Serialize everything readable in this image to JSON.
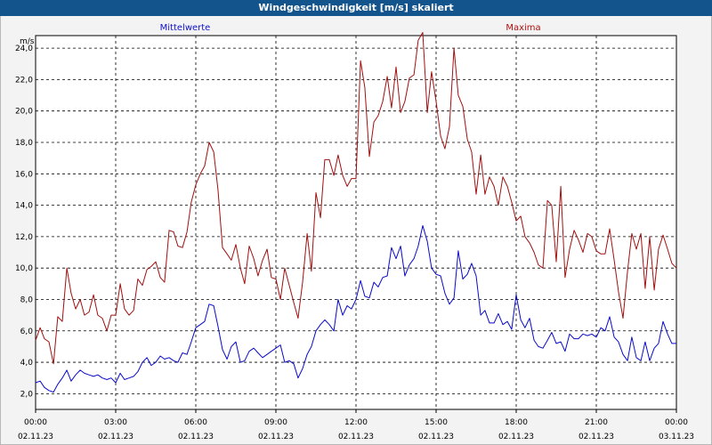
{
  "window": {
    "title": "Windgeschwindigkeit [m/s] skaliert"
  },
  "chart_data": {
    "type": "line",
    "title": "Windgeschwindigkeit [m/s] skaliert",
    "ylabel": "m/s",
    "xlabel": "",
    "ylim": [
      1,
      24.8
    ],
    "xlim": [
      0,
      24
    ],
    "grid": true,
    "legend_position": "top",
    "y_ticks": [
      "2,0",
      "4,0",
      "6,0",
      "8,0",
      "10,0",
      "12,0",
      "14,0",
      "16,0",
      "18,0",
      "20,0",
      "22,0",
      "24,0"
    ],
    "x_ticks": [
      {
        "time": "00:00",
        "date": "02.11.23"
      },
      {
        "time": "03:00",
        "date": "02.11.23"
      },
      {
        "time": "06:00",
        "date": "02.11.23"
      },
      {
        "time": "09:00",
        "date": "02.11.23"
      },
      {
        "time": "12:00",
        "date": "02.11.23"
      },
      {
        "time": "15:00",
        "date": "02.11.23"
      },
      {
        "time": "18:00",
        "date": "02.11.23"
      },
      {
        "time": "21:00",
        "date": "02.11.23"
      },
      {
        "time": "00:00",
        "date": "03.11.23"
      }
    ],
    "series": [
      {
        "name": "Mittelwerte",
        "color": "#0a0ac8",
        "points": [
          [
            0.0,
            2.7
          ],
          [
            0.17,
            2.8
          ],
          [
            0.33,
            2.4
          ],
          [
            0.5,
            2.2
          ],
          [
            0.67,
            2.1
          ],
          [
            0.83,
            2.6
          ],
          [
            1.0,
            3.0
          ],
          [
            1.17,
            3.5
          ],
          [
            1.33,
            2.8
          ],
          [
            1.5,
            3.2
          ],
          [
            1.67,
            3.5
          ],
          [
            1.83,
            3.3
          ],
          [
            2.0,
            3.2
          ],
          [
            2.17,
            3.1
          ],
          [
            2.33,
            3.2
          ],
          [
            2.5,
            3.0
          ],
          [
            2.67,
            2.9
          ],
          [
            2.83,
            3.0
          ],
          [
            3.0,
            2.7
          ],
          [
            3.17,
            3.3
          ],
          [
            3.33,
            2.9
          ],
          [
            3.5,
            3.0
          ],
          [
            3.67,
            3.1
          ],
          [
            3.83,
            3.4
          ],
          [
            4.0,
            4.0
          ],
          [
            4.17,
            4.3
          ],
          [
            4.33,
            3.8
          ],
          [
            4.5,
            4.0
          ],
          [
            4.67,
            4.4
          ],
          [
            4.83,
            4.2
          ],
          [
            5.0,
            4.3
          ],
          [
            5.17,
            4.1
          ],
          [
            5.33,
            4.0
          ],
          [
            5.5,
            4.6
          ],
          [
            5.67,
            4.5
          ],
          [
            5.83,
            5.3
          ],
          [
            6.0,
            6.2
          ],
          [
            6.17,
            6.4
          ],
          [
            6.33,
            6.6
          ],
          [
            6.5,
            7.7
          ],
          [
            6.67,
            7.6
          ],
          [
            6.83,
            6.3
          ],
          [
            7.0,
            4.8
          ],
          [
            7.17,
            4.2
          ],
          [
            7.33,
            5.0
          ],
          [
            7.5,
            5.3
          ],
          [
            7.67,
            4.0
          ],
          [
            7.83,
            4.1
          ],
          [
            8.0,
            4.7
          ],
          [
            8.17,
            4.9
          ],
          [
            8.33,
            4.6
          ],
          [
            8.5,
            4.3
          ],
          [
            8.67,
            4.5
          ],
          [
            8.83,
            4.7
          ],
          [
            9.0,
            4.9
          ],
          [
            9.17,
            5.1
          ],
          [
            9.33,
            4.0
          ],
          [
            9.5,
            4.1
          ],
          [
            9.67,
            3.9
          ],
          [
            9.83,
            3.0
          ],
          [
            10.0,
            3.6
          ],
          [
            10.17,
            4.5
          ],
          [
            10.33,
            5.0
          ],
          [
            10.5,
            6.0
          ],
          [
            10.67,
            6.4
          ],
          [
            10.83,
            6.7
          ],
          [
            11.0,
            6.4
          ],
          [
            11.17,
            6.0
          ],
          [
            11.33,
            8.0
          ],
          [
            11.5,
            7.0
          ],
          [
            11.67,
            7.6
          ],
          [
            11.83,
            7.4
          ],
          [
            12.0,
            8.0
          ],
          [
            12.17,
            9.2
          ],
          [
            12.33,
            8.2
          ],
          [
            12.5,
            8.1
          ],
          [
            12.67,
            9.1
          ],
          [
            12.83,
            8.8
          ],
          [
            13.0,
            9.4
          ],
          [
            13.17,
            9.5
          ],
          [
            13.33,
            11.3
          ],
          [
            13.5,
            10.6
          ],
          [
            13.67,
            11.4
          ],
          [
            13.83,
            9.5
          ],
          [
            14.0,
            10.2
          ],
          [
            14.17,
            10.6
          ],
          [
            14.33,
            11.4
          ],
          [
            14.5,
            12.7
          ],
          [
            14.67,
            11.7
          ],
          [
            14.83,
            10.0
          ],
          [
            15.0,
            9.6
          ],
          [
            15.17,
            9.5
          ],
          [
            15.33,
            8.4
          ],
          [
            15.5,
            7.7
          ],
          [
            15.67,
            8.1
          ],
          [
            15.83,
            11.1
          ],
          [
            16.0,
            9.3
          ],
          [
            16.17,
            9.6
          ],
          [
            16.33,
            10.3
          ],
          [
            16.5,
            9.5
          ],
          [
            16.67,
            7.0
          ],
          [
            16.83,
            7.3
          ],
          [
            17.0,
            6.5
          ],
          [
            17.17,
            6.5
          ],
          [
            17.33,
            7.1
          ],
          [
            17.5,
            6.4
          ],
          [
            17.67,
            6.6
          ],
          [
            17.83,
            6.1
          ],
          [
            18.0,
            8.3
          ],
          [
            18.17,
            6.7
          ],
          [
            18.33,
            6.2
          ],
          [
            18.5,
            6.8
          ],
          [
            18.67,
            5.4
          ],
          [
            18.83,
            5.0
          ],
          [
            19.0,
            4.9
          ],
          [
            19.17,
            5.4
          ],
          [
            19.33,
            5.9
          ],
          [
            19.5,
            5.2
          ],
          [
            19.67,
            5.3
          ],
          [
            19.83,
            4.7
          ],
          [
            20.0,
            5.8
          ],
          [
            20.17,
            5.5
          ],
          [
            20.33,
            5.5
          ],
          [
            20.5,
            5.8
          ],
          [
            20.67,
            5.7
          ],
          [
            20.83,
            5.8
          ],
          [
            21.0,
            5.6
          ],
          [
            21.17,
            6.2
          ],
          [
            21.33,
            6.0
          ],
          [
            21.5,
            6.9
          ],
          [
            21.67,
            5.6
          ],
          [
            21.83,
            5.3
          ],
          [
            22.0,
            4.5
          ],
          [
            22.17,
            4.1
          ],
          [
            22.33,
            5.6
          ],
          [
            22.5,
            4.3
          ],
          [
            22.67,
            4.1
          ],
          [
            22.83,
            5.3
          ],
          [
            23.0,
            4.1
          ],
          [
            23.17,
            4.9
          ],
          [
            23.33,
            5.2
          ],
          [
            23.5,
            6.6
          ],
          [
            23.67,
            5.8
          ],
          [
            23.83,
            5.2
          ],
          [
            24.0,
            5.2
          ]
        ]
      },
      {
        "name": "Maxima",
        "color": "#a01010",
        "points": [
          [
            0.0,
            5.4
          ],
          [
            0.17,
            6.2
          ],
          [
            0.33,
            5.5
          ],
          [
            0.5,
            5.3
          ],
          [
            0.67,
            3.9
          ],
          [
            0.83,
            6.9
          ],
          [
            1.0,
            6.6
          ],
          [
            1.17,
            10.0
          ],
          [
            1.33,
            8.4
          ],
          [
            1.5,
            7.4
          ],
          [
            1.67,
            8.0
          ],
          [
            1.83,
            7.0
          ],
          [
            2.0,
            7.2
          ],
          [
            2.17,
            8.3
          ],
          [
            2.33,
            7.0
          ],
          [
            2.5,
            6.8
          ],
          [
            2.67,
            6.0
          ],
          [
            2.83,
            7.0
          ],
          [
            3.0,
            7.0
          ],
          [
            3.17,
            9.0
          ],
          [
            3.33,
            7.4
          ],
          [
            3.5,
            7.0
          ],
          [
            3.67,
            7.3
          ],
          [
            3.83,
            9.3
          ],
          [
            4.0,
            8.9
          ],
          [
            4.17,
            9.9
          ],
          [
            4.33,
            10.1
          ],
          [
            4.5,
            10.4
          ],
          [
            4.67,
            9.4
          ],
          [
            4.83,
            9.1
          ],
          [
            5.0,
            12.4
          ],
          [
            5.17,
            12.3
          ],
          [
            5.33,
            11.4
          ],
          [
            5.5,
            11.3
          ],
          [
            5.67,
            12.3
          ],
          [
            5.83,
            14.2
          ],
          [
            6.0,
            15.3
          ],
          [
            6.17,
            16.0
          ],
          [
            6.33,
            16.5
          ],
          [
            6.5,
            18.0
          ],
          [
            6.67,
            17.4
          ],
          [
            6.83,
            15.0
          ],
          [
            7.0,
            11.3
          ],
          [
            7.17,
            10.9
          ],
          [
            7.33,
            10.5
          ],
          [
            7.5,
            11.5
          ],
          [
            7.67,
            10.0
          ],
          [
            7.83,
            9.0
          ],
          [
            8.0,
            11.4
          ],
          [
            8.17,
            10.6
          ],
          [
            8.33,
            9.5
          ],
          [
            8.5,
            10.5
          ],
          [
            8.67,
            11.2
          ],
          [
            8.83,
            9.4
          ],
          [
            9.0,
            9.3
          ],
          [
            9.17,
            8.0
          ],
          [
            9.33,
            10.0
          ],
          [
            9.5,
            8.9
          ],
          [
            9.67,
            7.8
          ],
          [
            9.83,
            6.8
          ],
          [
            10.0,
            9.1
          ],
          [
            10.17,
            12.2
          ],
          [
            10.33,
            9.8
          ],
          [
            10.5,
            14.8
          ],
          [
            10.67,
            13.2
          ],
          [
            10.83,
            16.9
          ],
          [
            11.0,
            16.9
          ],
          [
            11.17,
            15.9
          ],
          [
            11.33,
            17.2
          ],
          [
            11.5,
            15.9
          ],
          [
            11.67,
            15.2
          ],
          [
            11.83,
            15.7
          ],
          [
            12.0,
            15.7
          ],
          [
            12.17,
            23.2
          ],
          [
            12.33,
            21.5
          ],
          [
            12.5,
            17.1
          ],
          [
            12.67,
            19.3
          ],
          [
            12.83,
            19.7
          ],
          [
            13.0,
            20.6
          ],
          [
            13.17,
            22.2
          ],
          [
            13.33,
            20.2
          ],
          [
            13.5,
            22.8
          ],
          [
            13.67,
            19.9
          ],
          [
            13.83,
            20.6
          ],
          [
            14.0,
            22.1
          ],
          [
            14.17,
            22.3
          ],
          [
            14.33,
            24.5
          ],
          [
            14.5,
            25.0
          ],
          [
            14.67,
            19.9
          ],
          [
            14.83,
            22.5
          ],
          [
            15.0,
            20.6
          ],
          [
            15.17,
            18.4
          ],
          [
            15.33,
            17.6
          ],
          [
            15.5,
            19.0
          ],
          [
            15.67,
            24.0
          ],
          [
            15.83,
            21.0
          ],
          [
            16.0,
            20.3
          ],
          [
            16.17,
            18.2
          ],
          [
            16.33,
            17.4
          ],
          [
            16.5,
            14.7
          ],
          [
            16.67,
            17.2
          ],
          [
            16.83,
            14.7
          ],
          [
            17.0,
            15.8
          ],
          [
            17.17,
            15.2
          ],
          [
            17.33,
            14.0
          ],
          [
            17.5,
            15.8
          ],
          [
            17.67,
            15.2
          ],
          [
            17.83,
            14.2
          ],
          [
            18.0,
            13.0
          ],
          [
            18.17,
            13.3
          ],
          [
            18.33,
            12.0
          ],
          [
            18.5,
            11.6
          ],
          [
            18.67,
            11.0
          ],
          [
            18.83,
            10.2
          ],
          [
            19.0,
            10.0
          ],
          [
            19.17,
            14.3
          ],
          [
            19.33,
            14.0
          ],
          [
            19.5,
            10.4
          ],
          [
            19.67,
            15.2
          ],
          [
            19.83,
            9.4
          ],
          [
            20.0,
            11.2
          ],
          [
            20.17,
            12.4
          ],
          [
            20.33,
            11.8
          ],
          [
            20.5,
            11.0
          ],
          [
            20.67,
            12.2
          ],
          [
            20.83,
            12.0
          ],
          [
            21.0,
            11.1
          ],
          [
            21.17,
            10.9
          ],
          [
            21.33,
            10.9
          ],
          [
            21.5,
            12.5
          ],
          [
            21.67,
            10.5
          ],
          [
            21.83,
            8.5
          ],
          [
            22.0,
            6.8
          ],
          [
            22.17,
            9.8
          ],
          [
            22.33,
            12.2
          ],
          [
            22.5,
            11.2
          ],
          [
            22.67,
            12.2
          ],
          [
            22.83,
            8.7
          ],
          [
            23.0,
            12.0
          ],
          [
            23.17,
            8.6
          ],
          [
            23.33,
            11.2
          ],
          [
            23.5,
            12.1
          ],
          [
            23.67,
            11.2
          ],
          [
            23.83,
            10.3
          ],
          [
            24.0,
            10.0
          ]
        ]
      }
    ]
  }
}
